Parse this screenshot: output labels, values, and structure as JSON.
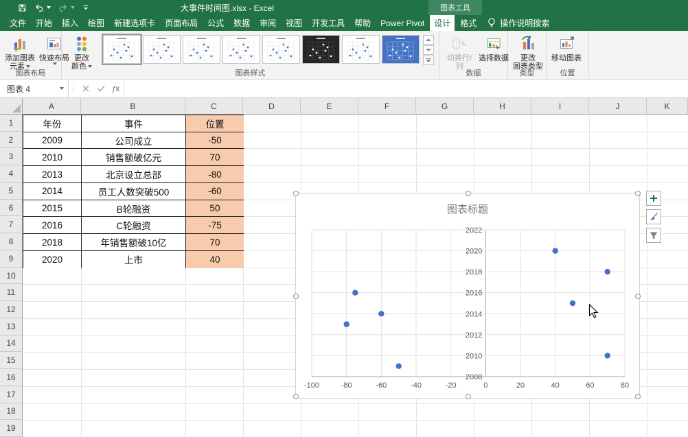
{
  "title_bar": {
    "window_title": "大事件时间图.xlsx - Excel",
    "contextual_tab_group": "图表工具"
  },
  "tabs": [
    {
      "label": "文件"
    },
    {
      "label": "开始"
    },
    {
      "label": "插入"
    },
    {
      "label": "绘图"
    },
    {
      "label": "新建选项卡"
    },
    {
      "label": "页面布局"
    },
    {
      "label": "公式"
    },
    {
      "label": "数据"
    },
    {
      "label": "审阅"
    },
    {
      "label": "视图"
    },
    {
      "label": "开发工具"
    },
    {
      "label": "帮助"
    },
    {
      "label": "Power Pivot"
    },
    {
      "label": "设计",
      "active": true
    },
    {
      "label": "格式"
    }
  ],
  "tell_me_label": "操作说明搜索",
  "ribbon": {
    "groups": [
      {
        "label": "图表布局"
      },
      {
        "label": "图表样式"
      },
      {
        "label": "数据"
      },
      {
        "label": "类型"
      },
      {
        "label": "位置"
      }
    ],
    "buttons": {
      "add_chart_element": {
        "line1": "添加图表",
        "line2": "元素"
      },
      "quick_layout": {
        "line1": "快速布局"
      },
      "change_colors": {
        "line1": "更改",
        "line2": "颜色"
      },
      "switch_row_col": {
        "line1": "切换行/列",
        "disabled": true
      },
      "select_data": {
        "line1": "选择数据"
      },
      "change_chart_type": {
        "line1": "更改",
        "line2": "图表类型"
      },
      "move_chart": {
        "line1": "移动图表"
      }
    },
    "style_gallery": [
      {
        "variant": "white",
        "selected": true
      },
      {
        "variant": "white"
      },
      {
        "variant": "white"
      },
      {
        "variant": "white"
      },
      {
        "variant": "white"
      },
      {
        "variant": "dark"
      },
      {
        "variant": "white"
      },
      {
        "variant": "blue"
      }
    ]
  },
  "formula_bar": {
    "name_box_value": "图表 4",
    "formula_value": "",
    "fx_label": "fx"
  },
  "sheet": {
    "column_headers": [
      "A",
      "B",
      "C",
      "D",
      "E",
      "F",
      "G",
      "H",
      "I",
      "J",
      "K"
    ],
    "row_headers": [
      "1",
      "2",
      "3",
      "4",
      "5",
      "6",
      "7",
      "8",
      "9",
      "10",
      "11",
      "12",
      "13",
      "14",
      "15",
      "16",
      "17",
      "18",
      "19"
    ],
    "table": {
      "columns": [
        "年份",
        "事件",
        "位置"
      ],
      "rows": [
        [
          "2009",
          "公司成立",
          "-50"
        ],
        [
          "2010",
          "销售额破亿元",
          "70"
        ],
        [
          "2013",
          "北京设立总部",
          "-80"
        ],
        [
          "2014",
          "员工人数突破500",
          "-60"
        ],
        [
          "2015",
          "B轮融资",
          "50"
        ],
        [
          "2016",
          "C轮融资",
          "-75"
        ],
        [
          "2018",
          "年销售额破10亿",
          "70"
        ],
        [
          "2020",
          "上市",
          "40"
        ]
      ],
      "position_column_fill": "#f8cbad"
    }
  },
  "chart_data": {
    "type": "scatter",
    "title": "图表标题",
    "points": [
      {
        "x": -50,
        "y": 2009
      },
      {
        "x": 70,
        "y": 2010
      },
      {
        "x": -80,
        "y": 2013
      },
      {
        "x": -60,
        "y": 2014
      },
      {
        "x": 50,
        "y": 2015
      },
      {
        "x": -75,
        "y": 2016
      },
      {
        "x": 70,
        "y": 2018
      },
      {
        "x": 40,
        "y": 2020
      }
    ],
    "x_ticks": [
      -100,
      -80,
      -60,
      -40,
      -20,
      0,
      20,
      40,
      60,
      80
    ],
    "y_ticks": [
      2008,
      2010,
      2012,
      2014,
      2016,
      2018,
      2020,
      2022
    ],
    "xlim": [
      -100,
      80
    ],
    "ylim": [
      2008,
      2022
    ],
    "marker_color": "#4472c4",
    "grid": true,
    "legend": false,
    "y_axis_at_x": 0
  },
  "colors": {
    "excel_green": "#217346",
    "marker_blue": "#4472c4",
    "cell_orange": "#f8cbad"
  }
}
